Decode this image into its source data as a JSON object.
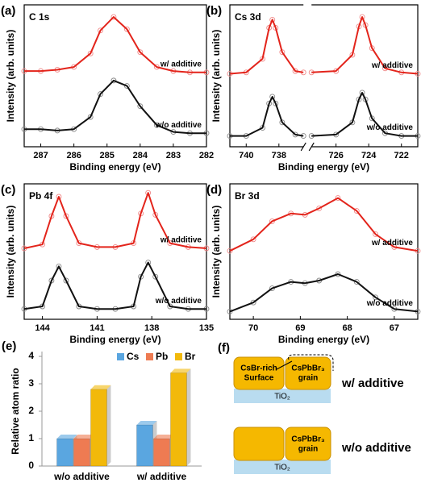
{
  "chart_data": [
    {
      "type": "line",
      "panel": "(a)",
      "title": "C 1s",
      "xlabel": "Binding energy (eV)",
      "ylabel": "Intensity (arb. units)",
      "xlim": [
        287.5,
        282
      ],
      "xticks": [
        287,
        286,
        285,
        284,
        283,
        282
      ],
      "ylim": [
        0,
        10.5
      ],
      "series": [
        {
          "name": "w/ additive",
          "color": "#e3241b",
          "x": [
            287.5,
            287,
            286.5,
            286,
            285.5,
            285.2,
            284.8,
            284.4,
            284,
            283.5,
            283,
            282.5,
            282
          ],
          "values": [
            5.6,
            5.6,
            5.7,
            5.9,
            6.9,
            8.6,
            9.6,
            8.7,
            7.0,
            5.9,
            5.6,
            5.5,
            5.5
          ]
        },
        {
          "name": "w/o additive",
          "color": "#111111",
          "x": [
            287.5,
            287,
            286.5,
            286,
            285.5,
            285.2,
            284.8,
            284.4,
            284,
            283.5,
            283,
            282.5,
            282
          ],
          "values": [
            1.3,
            1.3,
            1.2,
            1.3,
            2.2,
            3.9,
            4.9,
            4.5,
            3.0,
            1.6,
            1.1,
            1.0,
            1.0
          ]
        }
      ]
    },
    {
      "type": "line",
      "panel": "(b)",
      "title": "Cs 3d",
      "xlabel": "Binding energy (eV)",
      "ylabel": "Intensity (arb. units)",
      "xlim": [
        741,
        721
      ],
      "xbreak": [
        736.5,
        727.5
      ],
      "xticks": [
        740,
        738,
        726,
        724,
        722
      ],
      "ylim": [
        0,
        10.5
      ],
      "series": [
        {
          "name": "w/ additive",
          "color": "#e3241b",
          "x": [
            741,
            740,
            739,
            738.6,
            738.4,
            738.2,
            737.8,
            737,
            736.5,
            732,
            727.5,
            726,
            725,
            724.6,
            724.4,
            724.2,
            723.8,
            723,
            722,
            721
          ],
          "values": [
            5.4,
            5.5,
            6.5,
            8.8,
            9.4,
            8.8,
            7.0,
            5.6,
            5.5,
            null,
            5.5,
            5.6,
            6.8,
            8.9,
            9.6,
            9.0,
            7.3,
            5.8,
            5.5,
            5.4
          ]
        },
        {
          "name": "w/o additive",
          "color": "#111111",
          "x": [
            741,
            740,
            739,
            738.6,
            738.4,
            738.2,
            737.8,
            737,
            736.5,
            732,
            727.5,
            726,
            725,
            724.6,
            724.4,
            724.2,
            723.8,
            723,
            722,
            721
          ],
          "values": [
            0.8,
            0.8,
            1.4,
            3.2,
            3.7,
            3.2,
            1.8,
            0.9,
            0.8,
            null,
            0.8,
            0.9,
            1.8,
            3.5,
            4.0,
            3.5,
            2.1,
            1.0,
            0.8,
            0.8
          ]
        }
      ]
    },
    {
      "type": "line",
      "panel": "(c)",
      "title": "Pb 4f",
      "xlabel": "Binding energy (eV)",
      "ylabel": "Intensity (arb. units)",
      "xlim": [
        145,
        135
      ],
      "xticks": [
        144,
        141,
        138,
        135
      ],
      "ylim": [
        0,
        10.5
      ],
      "series": [
        {
          "name": "w/ additive",
          "color": "#e3241b",
          "x": [
            145,
            144,
            143.5,
            143.1,
            142.7,
            142,
            141,
            140,
            139,
            138.6,
            138.2,
            137.8,
            137,
            136,
            135
          ],
          "values": [
            5.5,
            5.8,
            8.0,
            9.5,
            8.0,
            5.9,
            5.6,
            5.6,
            5.9,
            8.2,
            9.8,
            8.1,
            5.9,
            5.6,
            5.5
          ]
        },
        {
          "name": "w/o additive",
          "color": "#111111",
          "x": [
            145,
            144,
            143.5,
            143.1,
            142.7,
            142,
            141,
            140,
            139,
            138.6,
            138.2,
            137.8,
            137,
            136,
            135
          ],
          "values": [
            0.8,
            1.0,
            3.0,
            4.1,
            3.0,
            1.0,
            0.8,
            0.8,
            1.0,
            3.3,
            4.4,
            3.3,
            1.0,
            0.8,
            0.8
          ]
        }
      ]
    },
    {
      "type": "line",
      "panel": "(d)",
      "title": "Br 3d",
      "xlabel": "Binding energy (eV)",
      "ylabel": "Intensity (arb. units)",
      "xlim": [
        70.5,
        66.5
      ],
      "xticks": [
        70,
        69,
        68,
        67
      ],
      "ylim": [
        0,
        10.5
      ],
      "series": [
        {
          "name": "w/ additive",
          "color": "#e3241b",
          "x": [
            70.5,
            70,
            69.6,
            69.2,
            68.9,
            68.6,
            68.2,
            67.8,
            67.4,
            67,
            66.5
          ],
          "values": [
            5.3,
            6.2,
            7.6,
            8.2,
            8.1,
            8.6,
            9.4,
            8.4,
            6.6,
            5.6,
            5.3
          ]
        },
        {
          "name": "w/o additive",
          "color": "#111111",
          "x": [
            70.5,
            70,
            69.6,
            69.2,
            68.9,
            68.6,
            68.2,
            67.8,
            67.4,
            67,
            66.5
          ],
          "values": [
            0.6,
            1.3,
            2.4,
            2.9,
            2.8,
            3.0,
            3.5,
            2.9,
            1.7,
            0.8,
            0.6
          ]
        }
      ]
    },
    {
      "type": "bar",
      "panel": "(e)",
      "ylabel": "Relative atom ratio",
      "categories": [
        "w/o additive",
        "w/ additive"
      ],
      "series": [
        {
          "name": "Cs",
          "color": "#5aa6e0",
          "values": [
            1.0,
            1.5
          ]
        },
        {
          "name": "Pb",
          "color": "#ee7b52",
          "values": [
            1.0,
            1.0
          ]
        },
        {
          "name": "Br",
          "color": "#f2b90a",
          "values": [
            2.8,
            3.4
          ]
        }
      ],
      "ylim": [
        0,
        4
      ],
      "yticks": [
        0,
        1,
        2,
        3,
        4
      ],
      "legend": "top-right"
    }
  ],
  "diagram": {
    "panel": "(f)",
    "with": {
      "surface": [
        "CsBr-rich",
        "Surface"
      ],
      "grain": [
        "CsPbBr₃",
        "grain"
      ],
      "substrate": "TiO₂",
      "label": "w/ additive"
    },
    "without": {
      "grain": [
        "CsPbBr₃",
        "grain"
      ],
      "substrate": "TiO₂",
      "label": "w/o additive"
    }
  }
}
